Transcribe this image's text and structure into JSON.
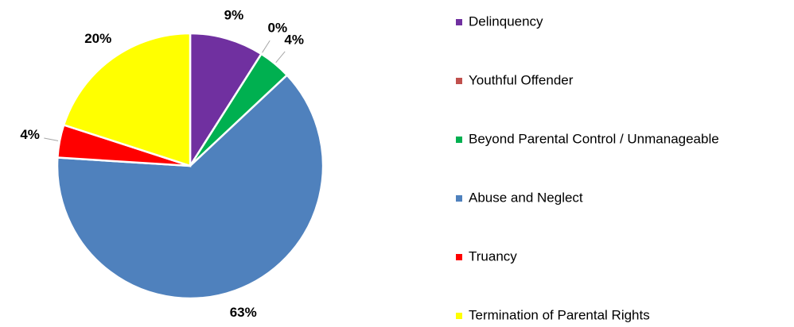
{
  "chart_data": {
    "type": "pie",
    "categories": [
      "Delinquency",
      "Youthful Offender",
      "Beyond Parental Control / Unmanageable",
      "Abuse and Neglect",
      "Truancy",
      "Termination of Parental Rights"
    ],
    "values": [
      9,
      0,
      4,
      63,
      4,
      20
    ],
    "value_labels": [
      "9%",
      "0%",
      "4%",
      "63%",
      "4%",
      "20%"
    ],
    "colors": [
      "#7030a0",
      "#c0504d",
      "#00b050",
      "#4f81bd",
      "#ff0000",
      "#ffff00"
    ],
    "legend": "right"
  }
}
